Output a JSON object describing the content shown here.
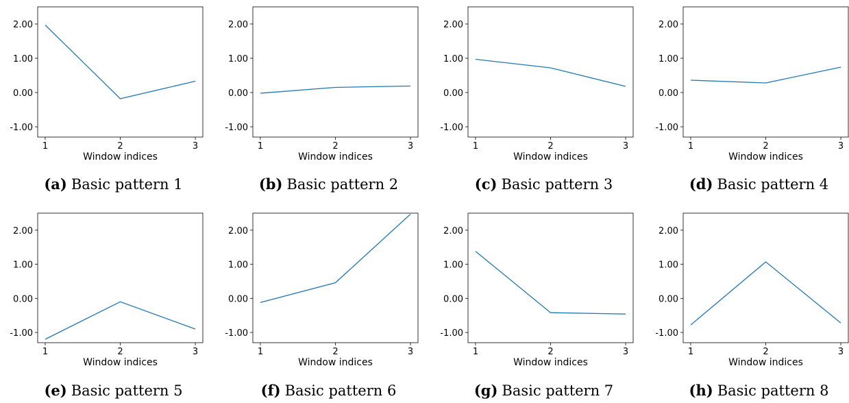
{
  "figure": {
    "line_color": "#1f77b4",
    "layout": {
      "rows": 2,
      "cols": 4
    }
  },
  "chart_data": [
    {
      "type": "line",
      "caption_letter": "(a)",
      "caption_text": "Basic pattern 1",
      "xlabel": "Window indices",
      "ylabel": "",
      "x": [
        1,
        2,
        3
      ],
      "y": [
        1.97,
        -0.18,
        0.33
      ],
      "ylim": [
        -1.3,
        2.5
      ],
      "yticks": [
        -1,
        0,
        1,
        2
      ],
      "ytick_labels": [
        "-1.00",
        "0.00",
        "1.00",
        "2.00"
      ],
      "xticks": [
        1,
        2,
        3
      ],
      "grid": false
    },
    {
      "type": "line",
      "caption_letter": "(b)",
      "caption_text": "Basic pattern 2",
      "xlabel": "Window indices",
      "ylabel": "",
      "x": [
        1,
        2,
        3
      ],
      "y": [
        -0.02,
        0.15,
        0.19
      ],
      "ylim": [
        -1.3,
        2.5
      ],
      "yticks": [
        -1,
        0,
        1,
        2
      ],
      "ytick_labels": [
        "-1.00",
        "0.00",
        "1.00",
        "2.00"
      ],
      "xticks": [
        1,
        2,
        3
      ],
      "grid": false
    },
    {
      "type": "line",
      "caption_letter": "(c)",
      "caption_text": "Basic pattern 3",
      "xlabel": "Window indices",
      "ylabel": "",
      "x": [
        1,
        2,
        3
      ],
      "y": [
        0.97,
        0.72,
        0.18
      ],
      "ylim": [
        -1.3,
        2.5
      ],
      "yticks": [
        -1,
        0,
        1,
        2
      ],
      "ytick_labels": [
        "-1.00",
        "0.00",
        "1.00",
        "2.00"
      ],
      "xticks": [
        1,
        2,
        3
      ],
      "grid": false
    },
    {
      "type": "line",
      "caption_letter": "(d)",
      "caption_text": "Basic pattern 4",
      "xlabel": "Window indices",
      "ylabel": "",
      "x": [
        1,
        2,
        3
      ],
      "y": [
        0.36,
        0.28,
        0.74
      ],
      "ylim": [
        -1.3,
        2.5
      ],
      "yticks": [
        -1,
        0,
        1,
        2
      ],
      "ytick_labels": [
        "-1.00",
        "0.00",
        "1.00",
        "2.00"
      ],
      "xticks": [
        1,
        2,
        3
      ],
      "grid": false
    },
    {
      "type": "line",
      "caption_letter": "(e)",
      "caption_text": "Basic pattern 5",
      "xlabel": "Window indices",
      "ylabel": "",
      "x": [
        1,
        2,
        3
      ],
      "y": [
        -1.2,
        -0.1,
        -0.9
      ],
      "ylim": [
        -1.3,
        2.5
      ],
      "yticks": [
        -1,
        0,
        1,
        2
      ],
      "ytick_labels": [
        "-1.00",
        "0.00",
        "1.00",
        "2.00"
      ],
      "xticks": [
        1,
        2,
        3
      ],
      "grid": false
    },
    {
      "type": "line",
      "caption_letter": "(f)",
      "caption_text": "Basic pattern 6",
      "xlabel": "Window indices",
      "ylabel": "",
      "x": [
        1,
        2,
        3
      ],
      "y": [
        -0.12,
        0.46,
        2.47
      ],
      "ylim": [
        -1.3,
        2.5
      ],
      "yticks": [
        -1,
        0,
        1,
        2
      ],
      "ytick_labels": [
        "-1.00",
        "0.00",
        "1.00",
        "2.00"
      ],
      "xticks": [
        1,
        2,
        3
      ],
      "grid": false
    },
    {
      "type": "line",
      "caption_letter": "(g)",
      "caption_text": "Basic pattern 7",
      "xlabel": "Window indices",
      "ylabel": "",
      "x": [
        1,
        2,
        3
      ],
      "y": [
        1.38,
        -0.42,
        -0.46
      ],
      "ylim": [
        -1.3,
        2.5
      ],
      "yticks": [
        -1,
        0,
        1,
        2
      ],
      "ytick_labels": [
        "-1.00",
        "0.00",
        "1.00",
        "2.00"
      ],
      "xticks": [
        1,
        2,
        3
      ],
      "grid": false
    },
    {
      "type": "line",
      "caption_letter": "(h)",
      "caption_text": "Basic pattern 8",
      "xlabel": "Window indices",
      "ylabel": "",
      "x": [
        1,
        2,
        3
      ],
      "y": [
        -0.78,
        1.07,
        -0.72
      ],
      "ylim": [
        -1.3,
        2.5
      ],
      "yticks": [
        -1,
        0,
        1,
        2
      ],
      "ytick_labels": [
        "-1.00",
        "0.00",
        "1.00",
        "2.00"
      ],
      "xticks": [
        1,
        2,
        3
      ],
      "grid": false
    }
  ]
}
